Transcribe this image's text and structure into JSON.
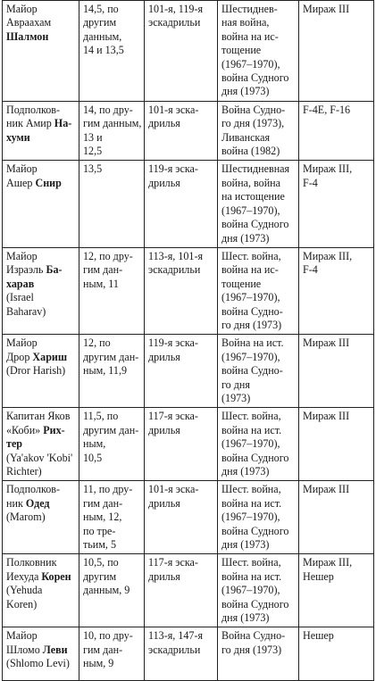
{
  "rows": [
    {
      "name": [
        [
          "Майор"
        ],
        [
          "Авраахам"
        ],
        [
          {
            "b": "Шалмон"
          }
        ]
      ],
      "score": [
        "14,5, по",
        "другим",
        "данным,",
        "14 и 13,5"
      ],
      "unit": [
        "101-я, 119-я",
        "эскадрильи"
      ],
      "wars": [
        "Шестиднев-",
        "ная война,",
        "война на ис-",
        "тощение",
        "(1967–1970),",
        "война Судного",
        "дня (1973)"
      ],
      "aircraft": [
        "Мираж III"
      ]
    },
    {
      "name": [
        [
          "Подполков-"
        ],
        [
          "ник Амир ",
          {
            "b": "На-"
          }
        ],
        [
          {
            "b": "хуми"
          }
        ]
      ],
      "score": [
        "14, по дру-",
        "гим данным,",
        "13 и",
        "12,5"
      ],
      "unit": [
        "101-я эска-",
        "дрилья"
      ],
      "wars": [
        "Война Судно-",
        "го дня (1973),",
        "Ливанская",
        "война (1982)"
      ],
      "aircraft": [
        "F-4E, F-16"
      ]
    },
    {
      "name": [
        [
          "Майор"
        ],
        [
          "Ашер ",
          {
            "b": "Снир"
          }
        ]
      ],
      "score": [
        "13,5"
      ],
      "unit": [
        "119-я эска-",
        "дрилья"
      ],
      "wars": [
        "Шестидневная",
        "война, война",
        "на истощение",
        "(1967–1970),",
        "война Судного",
        "дня (1973)"
      ],
      "aircraft": [
        "Мираж III,",
        "F-4"
      ]
    },
    {
      "name": [
        [
          "Майор"
        ],
        [
          "Израэль ",
          {
            "b": "Ба-"
          }
        ],
        [
          {
            "b": "харав"
          }
        ],
        [
          "(Israel"
        ],
        [
          "Baharav)"
        ]
      ],
      "score": [
        "12, по дру-",
        "гим дан-",
        "ным, 11"
      ],
      "unit": [
        "113-я, 101-я",
        "эскадрильи"
      ],
      "wars": [
        "Шест. война,",
        "война на ис-",
        "тощение",
        "(1967–1970),",
        "война Судно-",
        "го дня (1973)"
      ],
      "aircraft": [
        "Мираж III,",
        "F-4"
      ]
    },
    {
      "name": [
        [
          "Майор"
        ],
        [
          "Дрор ",
          {
            "b": "Хариш"
          }
        ],
        [
          "(Dror Harish)"
        ]
      ],
      "score": [
        "12, по",
        "другим дан-",
        "ным, 11,9"
      ],
      "unit": [
        "119-я эска-",
        "дрилья"
      ],
      "wars": [
        "Война на ист.",
        "(1967–1970),",
        "война Судно-",
        "го дня",
        "(1973)"
      ],
      "aircraft": [
        "Мираж III"
      ]
    },
    {
      "name": [
        [
          "Капитан Яков"
        ],
        [
          "«Коби» ",
          {
            "b": "Рих-"
          }
        ],
        [
          {
            "b": "тер"
          }
        ],
        [
          "(Ya'akov 'Kobi'"
        ],
        [
          "Richter)"
        ]
      ],
      "score": [
        "11,5, по",
        "другим дан-",
        "ным,",
        "10,5"
      ],
      "unit": [
        "117-я эска-",
        "дрилья"
      ],
      "wars": [
        "Шест. война,",
        "война на ист.",
        "(1967–1970),",
        "война Судного",
        "дня (1973)"
      ],
      "aircraft": [
        "Мираж III"
      ]
    },
    {
      "name": [
        [
          "Подполков-"
        ],
        [
          "ник ",
          {
            "b": "Одед"
          }
        ],
        [
          "(Marom)"
        ]
      ],
      "score": [
        "11, по дру-",
        "гим дан-",
        "ным, 12,",
        "по тре-",
        "тьим, 5"
      ],
      "unit": [
        "101-я эска-",
        "дрилья"
      ],
      "wars": [
        "Шест. война,",
        "война на ист.",
        "(1967–1970),",
        "война Судного",
        "дня (1973)"
      ],
      "aircraft": [
        "Мираж III"
      ]
    },
    {
      "name": [
        [
          "Полковник"
        ],
        [
          "Иехуда ",
          {
            "b": "Корен"
          }
        ],
        [
          "(Yehuda"
        ],
        [
          "Koren)"
        ]
      ],
      "score": [
        "10,5, по",
        "другим",
        "данным, 9"
      ],
      "unit": [
        "117-я эска-",
        "дрилья"
      ],
      "wars": [
        "Шест. война,",
        "война на ист.",
        "(1967–1970),",
        "война Судного",
        "дня (1973)"
      ],
      "aircraft": [
        "Мираж III,",
        "Нешер"
      ]
    },
    {
      "name": [
        [
          "Майор"
        ],
        [
          "Шломо ",
          {
            "b": "Леви"
          }
        ],
        [
          "(Shlomo Levi)"
        ]
      ],
      "score": [
        "10, по дру-",
        "гим дан-",
        "ным, 9"
      ],
      "unit": [
        "113-я, 147-я",
        "эскадрильи"
      ],
      "wars": [
        "Война Судно-",
        "го дня (1973)"
      ],
      "aircraft": [
        "Нешер"
      ]
    }
  ]
}
